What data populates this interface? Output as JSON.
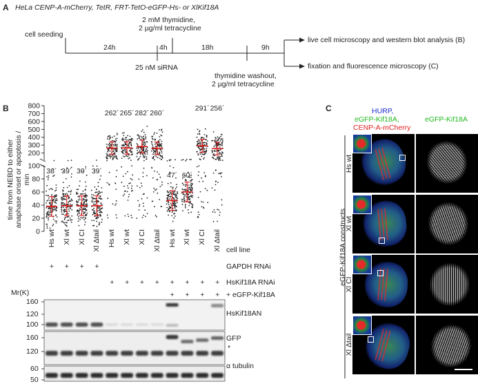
{
  "panelA": {
    "letter": "A",
    "title": "HeLa CENP-A-mCherry, TetR, FRT-TetO-eGFP-Hs- or XlKif18A",
    "cell_seeding": "cell seeding",
    "t1": "24h",
    "t2": "4h",
    "t3": "18h",
    "t4": "9h",
    "thymidine_line1": "2 mM thymidine,",
    "thymidine_line2": "2 µg/ml tetracycline",
    "sirna": "25 nM siRNA",
    "washout_line1": "thymidine washout,",
    "washout_line2": "2 µg/ml tetracycline",
    "out1": "live cell microscopy and western blot analysis (B)",
    "out2": "fixation and fluorescence microscopy (C)"
  },
  "panelB": {
    "letter": "B",
    "ylabel_line1": "time from NEBD to either",
    "ylabel_line2": "anaphase onset or apoptosis / min",
    "cell_line_label": "cell line",
    "gapdh_label": "GAPDH RNAi",
    "hskif_label": "HsKif18A RNAi",
    "egfp_label": "+ eGFP-Kif18A",
    "mr_label": "Mr(K)",
    "blot1_label": "HsKif18AN",
    "blot2_label": "GFP",
    "blot2_star": "*",
    "blot3_label": "α tubulin",
    "blot1_ticks": [
      "160",
      "120",
      "100"
    ],
    "blot2_ticks": [
      "160",
      "120"
    ],
    "blot3_ticks": [
      "60",
      "50"
    ],
    "plus": "+"
  },
  "panelC": {
    "letter": "C",
    "label_hurp": "HURP,",
    "label_egfp": "eGFP-Kif18A,",
    "label_cenp": "CENP-A-mCherry",
    "col2_label": "eGFP-Kif18A",
    "side_label": "eGFP-Kif18A constructs",
    "rows": [
      "Hs wt",
      "Xl wt",
      "Xl CI",
      "Xl Δtail"
    ]
  },
  "chart_data": {
    "type": "scatter",
    "categories": [
      "Hs wt",
      "Xl wt",
      "Xl CI",
      "Xl Δtail",
      "Hs wt",
      "Xl wt",
      "Xl CI",
      "Xl Δtail",
      "Hs wt",
      "Xl wt",
      "Xl CI",
      "Xl Δtail"
    ],
    "median_labels": [
      "38´",
      "39´",
      "39´",
      "39´",
      "262´",
      "265´",
      "282´",
      "260´",
      "47´",
      "60´",
      "291´",
      "256´"
    ],
    "medians": [
      38,
      39,
      39,
      39,
      262,
      265,
      282,
      260,
      47,
      60,
      291,
      256
    ],
    "gapdh_rnai": [
      true,
      true,
      true,
      true,
      false,
      false,
      false,
      false,
      false,
      false,
      false,
      false
    ],
    "hskif18a_rnai": [
      false,
      false,
      false,
      false,
      true,
      true,
      true,
      true,
      true,
      true,
      true,
      true
    ],
    "egfp_kif18a": [
      false,
      false,
      false,
      false,
      false,
      false,
      false,
      false,
      true,
      true,
      true,
      true
    ],
    "y_ticks_lower": [
      "0",
      "20",
      "40",
      "60",
      "80",
      "100"
    ],
    "y_ticks_upper": [
      "100",
      "200",
      "300",
      "400",
      "500",
      "600",
      "700",
      "800"
    ],
    "ylim": [
      0,
      800
    ]
  }
}
